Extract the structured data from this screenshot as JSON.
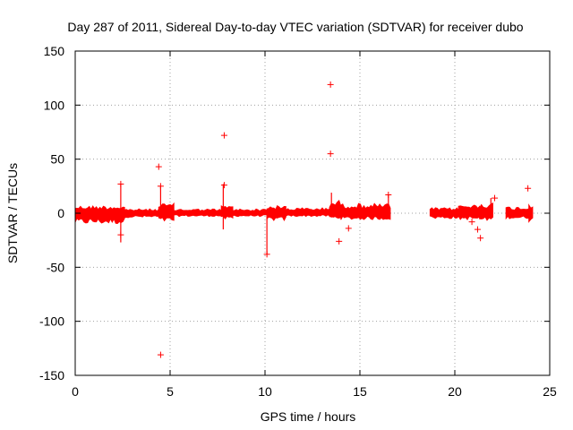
{
  "chart_data": {
    "type": "scatter",
    "title": "Day 287 of 2011, Sidereal Day-to-day VTEC variation (SDTVAR) for receiver dubo",
    "xlabel": "GPS time / hours",
    "ylabel": "SDTVAR / TECUs",
    "xlim": [
      0,
      25
    ],
    "ylim": [
      -150,
      150
    ],
    "x_ticks": [
      0,
      5,
      10,
      15,
      20,
      25
    ],
    "x_tick_labels": [
      "0",
      "5",
      "10",
      "15",
      "20",
      "25"
    ],
    "y_ticks": [
      -150,
      -100,
      -50,
      0,
      50,
      100,
      150
    ],
    "y_tick_labels": [
      "-150",
      "-100",
      "-50",
      "0",
      "50",
      "100",
      "150"
    ],
    "grid": true,
    "marker": "+",
    "color": "#ff0000",
    "dense_band": {
      "segments": [
        {
          "x_start": 0.0,
          "x_end": 2.6,
          "y_low": -10,
          "y_high": 7
        },
        {
          "x_start": 2.6,
          "x_end": 4.4,
          "y_low": -4,
          "y_high": 4
        },
        {
          "x_start": 4.4,
          "x_end": 5.2,
          "y_low": -8,
          "y_high": 9
        },
        {
          "x_start": 5.2,
          "x_end": 7.7,
          "y_low": -3,
          "y_high": 4
        },
        {
          "x_start": 7.7,
          "x_end": 8.3,
          "y_low": -6,
          "y_high": 7
        },
        {
          "x_start": 8.3,
          "x_end": 10.1,
          "y_low": -3,
          "y_high": 4
        },
        {
          "x_start": 10.1,
          "x_end": 11.1,
          "y_low": -7,
          "y_high": 7
        },
        {
          "x_start": 11.1,
          "x_end": 13.4,
          "y_low": -3,
          "y_high": 5
        },
        {
          "x_start": 13.4,
          "x_end": 14.0,
          "y_low": -5,
          "y_high": 12
        },
        {
          "x_start": 14.0,
          "x_end": 16.6,
          "y_low": -6,
          "y_high": 9
        },
        {
          "x_start": 18.7,
          "x_end": 20.2,
          "y_low": -5,
          "y_high": 5
        },
        {
          "x_start": 20.2,
          "x_end": 21.3,
          "y_low": -6,
          "y_high": 8
        },
        {
          "x_start": 21.3,
          "x_end": 22.0,
          "y_low": -7,
          "y_high": 10
        },
        {
          "x_start": 22.7,
          "x_end": 23.9,
          "y_low": -5,
          "y_high": 6
        },
        {
          "x_start": 23.9,
          "x_end": 24.1,
          "y_low": -8,
          "y_high": 10
        }
      ]
    },
    "spikes": [
      {
        "x": 2.4,
        "y_low": -27,
        "y_high": 27
      },
      {
        "x": 4.5,
        "y_low": -5,
        "y_high": 25
      },
      {
        "x": 7.8,
        "y_low": -15,
        "y_high": 27
      },
      {
        "x": 10.1,
        "y_low": -38,
        "y_high": 3
      },
      {
        "x": 13.5,
        "y_low": -4,
        "y_high": 19
      },
      {
        "x": 16.5,
        "y_low": -5,
        "y_high": 17
      },
      {
        "x": 21.9,
        "y_low": -5,
        "y_high": 14
      }
    ],
    "points": [
      {
        "x": 13.45,
        "y": 119
      },
      {
        "x": 7.85,
        "y": 72
      },
      {
        "x": 13.45,
        "y": 55
      },
      {
        "x": 4.4,
        "y": 43
      },
      {
        "x": 2.4,
        "y": 27
      },
      {
        "x": 7.85,
        "y": 26
      },
      {
        "x": 4.5,
        "y": 25
      },
      {
        "x": 23.85,
        "y": 23
      },
      {
        "x": 16.5,
        "y": 17
      },
      {
        "x": 22.1,
        "y": 14
      },
      {
        "x": 4.5,
        "y": -131
      },
      {
        "x": 13.9,
        "y": -26
      },
      {
        "x": 21.35,
        "y": -23
      },
      {
        "x": 21.2,
        "y": -15
      },
      {
        "x": 14.4,
        "y": -14
      },
      {
        "x": 20.9,
        "y": -8
      },
      {
        "x": 10.1,
        "y": -38
      },
      {
        "x": 2.4,
        "y": -20
      }
    ]
  }
}
